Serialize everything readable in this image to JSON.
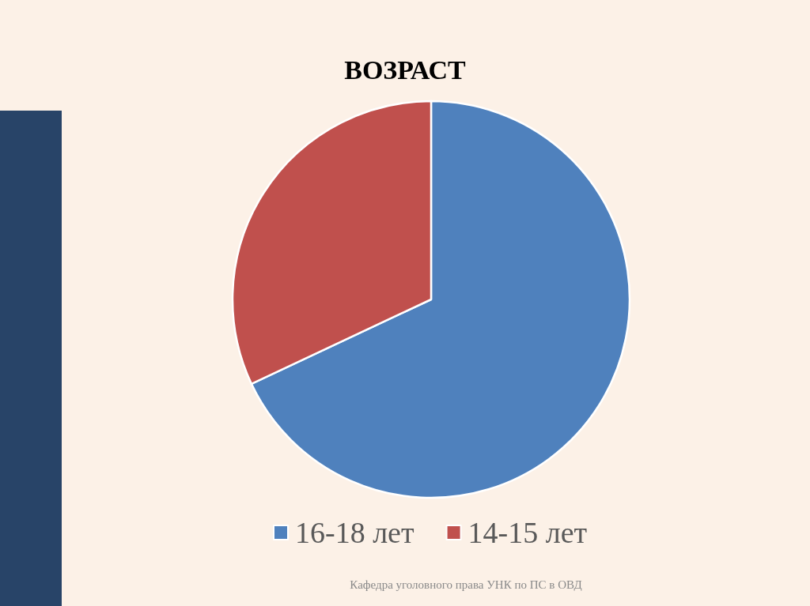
{
  "chart_data": {
    "type": "pie",
    "title": "ВОЗРАСТ",
    "categories": [
      "16-18 лет",
      "14-15 лет"
    ],
    "values": [
      68,
      32
    ],
    "colors": [
      "#4f81bd",
      "#c0504d"
    ],
    "legend": "bottom",
    "annotations": [
      "Кафедра уголовного права УНК по ПС в ОВД"
    ]
  }
}
